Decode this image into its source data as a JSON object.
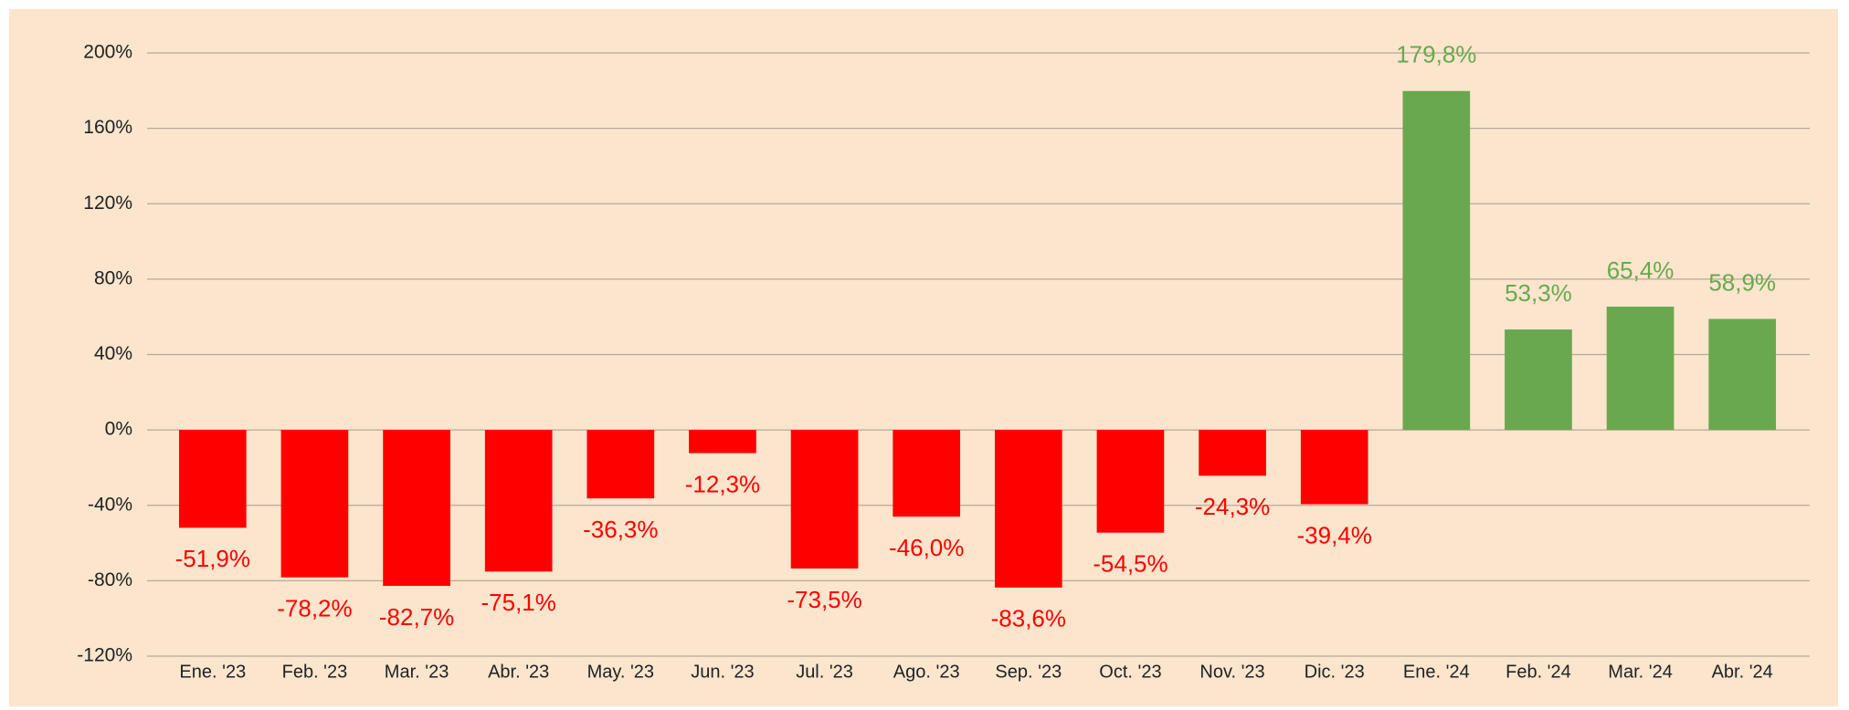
{
  "chart_data": {
    "type": "bar",
    "categories": [
      "Ene. '23",
      "Feb. '23",
      "Mar. '23",
      "Abr. '23",
      "May. '23",
      "Jun. '23",
      "Jul. '23",
      "Ago. '23",
      "Sep. '23",
      "Oct. '23",
      "Nov. '23",
      "Dic. '23",
      "Ene. '24",
      "Feb. '24",
      "Mar. '24",
      "Abr. '24"
    ],
    "values": [
      -51.9,
      -78.2,
      -82.7,
      -75.1,
      -36.3,
      -12.3,
      -73.5,
      -46.0,
      -83.6,
      -54.5,
      -24.3,
      -39.4,
      179.8,
      53.3,
      65.4,
      58.9
    ],
    "value_labels": [
      "-51,9%",
      "-78,2%",
      "-82,7%",
      "-75,1%",
      "-36,3%",
      "-12,3%",
      "-73,5%",
      "-46,0%",
      "-83,6%",
      "-54,5%",
      "-24,3%",
      "-39,4%",
      "179,8%",
      "53,3%",
      "65,4%",
      "58,9%"
    ],
    "positive_color": "#6aa84f",
    "negative_color": "#ff0000",
    "ylim": [
      -120,
      200
    ],
    "yticks": [
      {
        "value": -120,
        "label": "-120%"
      },
      {
        "value": -80,
        "label": "-80%"
      },
      {
        "value": -40,
        "label": "-40%"
      },
      {
        "value": 0,
        "label": "0%"
      },
      {
        "value": 40,
        "label": "40%"
      },
      {
        "value": 80,
        "label": "80%"
      },
      {
        "value": 120,
        "label": "120%"
      },
      {
        "value": 160,
        "label": "160%"
      },
      {
        "value": 200,
        "label": "200%"
      }
    ],
    "grid": true
  }
}
